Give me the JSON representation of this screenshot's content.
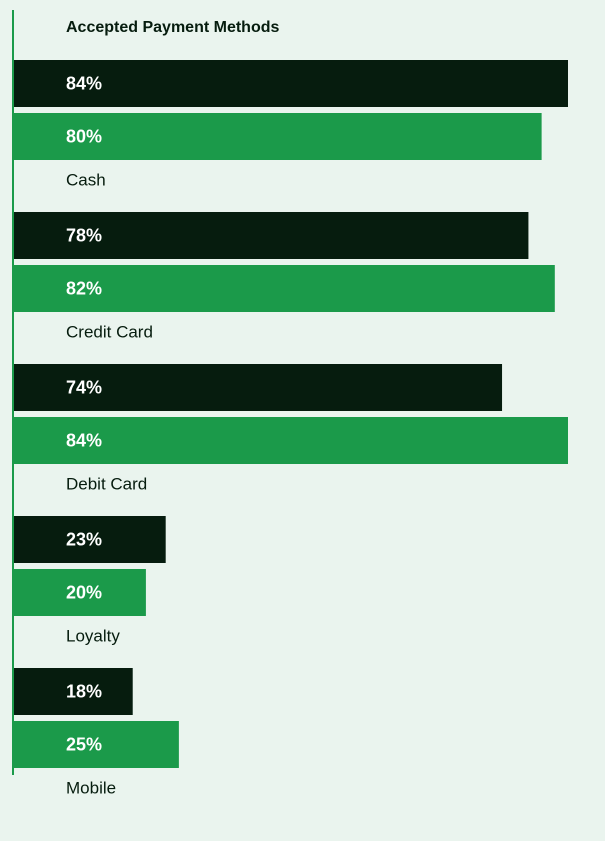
{
  "chart_data": {
    "type": "hbar",
    "title": "Accepted Payment Methods",
    "categories": [
      "Cash",
      "Credit Card",
      "Debit Card",
      "Loyalty",
      "Mobile"
    ],
    "series": [
      {
        "color": "#061c0e",
        "values": [
          84,
          78,
          74,
          23,
          18
        ],
        "value_labels": [
          "84%",
          "78%",
          "74%",
          "23%",
          "18%"
        ]
      },
      {
        "color": "#1b9a4a",
        "values": [
          80,
          82,
          84,
          20,
          25
        ],
        "value_labels": [
          "80%",
          "82%",
          "84%",
          "20%",
          "25%"
        ]
      }
    ],
    "xlim": [
      0,
      84
    ],
    "axis_color": "#1b9a4a",
    "background": "#eaf4ee"
  }
}
